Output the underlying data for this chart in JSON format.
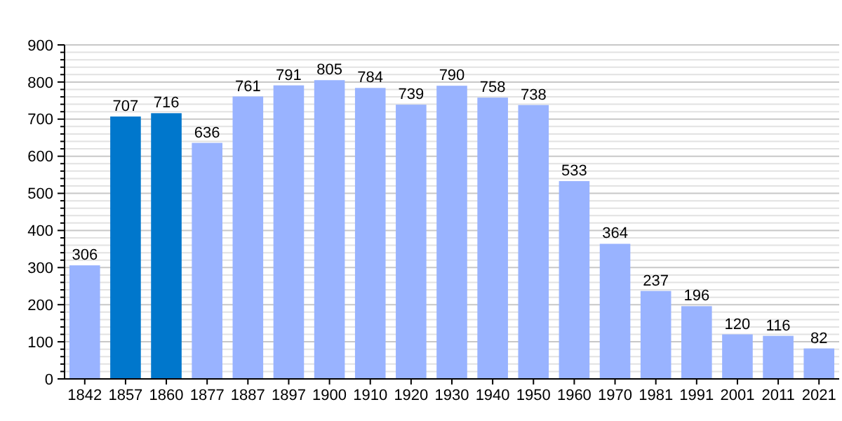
{
  "chart_data": {
    "type": "bar",
    "categories": [
      "1842",
      "1857",
      "1860",
      "1877",
      "1887",
      "1897",
      "1900",
      "1910",
      "1920",
      "1930",
      "1940",
      "1950",
      "1960",
      "1970",
      "1981",
      "1991",
      "2001",
      "2011",
      "2021"
    ],
    "values": [
      306,
      707,
      716,
      636,
      761,
      791,
      805,
      784,
      739,
      790,
      758,
      738,
      533,
      364,
      237,
      196,
      120,
      116,
      82
    ],
    "colors": [
      "#99b3ff",
      "#0077cc",
      "#0077cc",
      "#99b3ff",
      "#99b3ff",
      "#99b3ff",
      "#99b3ff",
      "#99b3ff",
      "#99b3ff",
      "#99b3ff",
      "#99b3ff",
      "#99b3ff",
      "#99b3ff",
      "#99b3ff",
      "#99b3ff",
      "#99b3ff",
      "#99b3ff",
      "#99b3ff",
      "#99b3ff"
    ],
    "ylim": [
      0,
      900
    ],
    "yticks": [
      0,
      {
        "value": 20,
        "label": null
      },
      {
        "value": 40,
        "label": null
      },
      {
        "value": 60,
        "label": null
      },
      {
        "value": 80,
        "label": null
      },
      100,
      {
        "value": 120,
        "label": null
      },
      {
        "value": 140,
        "label": null
      },
      {
        "value": 160,
        "label": null
      },
      {
        "value": 180,
        "label": null
      },
      200,
      {
        "value": 220,
        "label": null
      },
      {
        "value": 240,
        "label": null
      },
      {
        "value": 260,
        "label": null
      },
      {
        "value": 280,
        "label": null
      },
      300,
      {
        "value": 320,
        "label": null
      },
      {
        "value": 340,
        "label": null
      },
      {
        "value": 360,
        "label": null
      },
      {
        "value": 380,
        "label": null
      },
      400,
      {
        "value": 420,
        "label": null
      },
      {
        "value": 440,
        "label": null
      },
      {
        "value": 460,
        "label": null
      },
      {
        "value": 480,
        "label": null
      },
      500,
      {
        "value": 520,
        "label": null
      },
      {
        "value": 540,
        "label": null
      },
      {
        "value": 560,
        "label": null
      },
      {
        "value": 580,
        "label": null
      },
      600,
      {
        "value": 620,
        "label": null
      },
      {
        "value": 640,
        "label": null
      },
      {
        "value": 660,
        "label": null
      },
      {
        "value": 680,
        "label": null
      },
      700,
      {
        "value": 720,
        "label": null
      },
      {
        "value": 740,
        "label": null
      },
      {
        "value": 760,
        "label": null
      },
      {
        "value": 780,
        "label": null
      },
      800,
      {
        "value": 820,
        "label": null
      },
      {
        "value": 840,
        "label": null
      },
      {
        "value": 860,
        "label": null
      },
      {
        "value": 880,
        "label": null
      },
      900
    ],
    "grid": "y",
    "data_labels": true
  }
}
